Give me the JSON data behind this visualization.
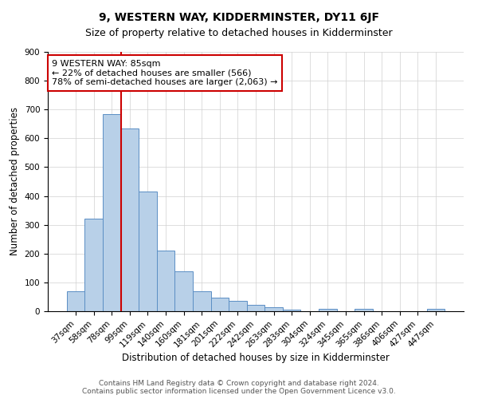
{
  "title": "9, WESTERN WAY, KIDDERMINSTER, DY11 6JF",
  "subtitle": "Size of property relative to detached houses in Kidderminster",
  "xlabel": "Distribution of detached houses by size in Kidderminster",
  "ylabel": "Number of detached properties",
  "categories": [
    "37sqm",
    "58sqm",
    "78sqm",
    "99sqm",
    "119sqm",
    "140sqm",
    "160sqm",
    "181sqm",
    "201sqm",
    "222sqm",
    "242sqm",
    "263sqm",
    "283sqm",
    "304sqm",
    "324sqm",
    "345sqm",
    "365sqm",
    "386sqm",
    "406sqm",
    "427sqm",
    "447sqm"
  ],
  "values": [
    70,
    320,
    685,
    635,
    415,
    210,
    138,
    68,
    47,
    35,
    23,
    13,
    5,
    0,
    8,
    0,
    8,
    0,
    0,
    0,
    8
  ],
  "bar_color": "#b8d0e8",
  "bar_edge_color": "#5b8ec4",
  "vline_x": 2.5,
  "vline_color": "#cc0000",
  "annotation_line1": "9 WESTERN WAY: 85sqm",
  "annotation_line2": "← 22% of detached houses are smaller (566)",
  "annotation_line3": "78% of semi-detached houses are larger (2,063) →",
  "annotation_box_color": "#ffffff",
  "annotation_box_edge": "#cc0000",
  "ylim": [
    0,
    900
  ],
  "yticks": [
    0,
    100,
    200,
    300,
    400,
    500,
    600,
    700,
    800,
    900
  ],
  "footer": "Contains HM Land Registry data © Crown copyright and database right 2024.\nContains public sector information licensed under the Open Government Licence v3.0.",
  "title_fontsize": 10,
  "subtitle_fontsize": 9,
  "xlabel_fontsize": 8.5,
  "ylabel_fontsize": 8.5,
  "tick_fontsize": 7.5,
  "annotation_fontsize": 8,
  "footer_fontsize": 6.5
}
